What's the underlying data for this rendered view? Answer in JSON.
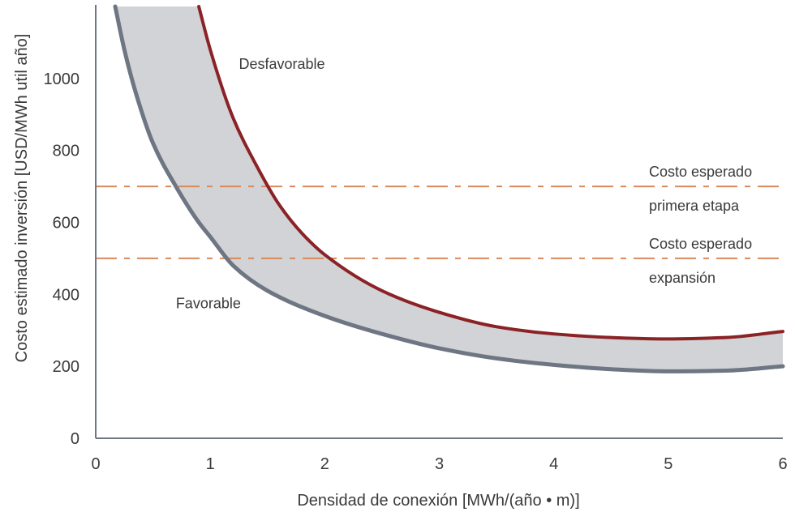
{
  "chart_data": {
    "type": "area",
    "title": "",
    "xlabel": "Densidad de conexión [MWh/(año • m)]",
    "ylabel": "Costo estimado inversión [USD/MWh util año]",
    "xlim": [
      0,
      6
    ],
    "ylim": [
      0,
      1200
    ],
    "xticks": [
      0,
      1,
      2,
      3,
      4,
      5,
      6
    ],
    "yticks": [
      0,
      200,
      400,
      600,
      800,
      1000
    ],
    "grid": false,
    "colors": {
      "band_fill": "#d1d3d6",
      "upper_line": "#8b2226",
      "lower_line": "#6e7583",
      "threshold": "#d9895a",
      "axis": "#6e7583",
      "text": "#3a3a3a"
    },
    "series": [
      {
        "role": "upper-bound",
        "x": [
          0.9,
          1.0,
          1.2,
          1.4,
          1.6,
          1.8,
          2.0,
          2.5,
          3.0,
          3.5,
          4.0,
          4.5,
          5.0,
          5.5,
          6.0
        ],
        "y": [
          1200,
          1080,
          890,
          760,
          650,
          570,
          510,
          410,
          350,
          310,
          290,
          280,
          276,
          280,
          297
        ]
      },
      {
        "role": "lower-bound",
        "x": [
          0.17,
          0.25,
          0.35,
          0.5,
          0.7,
          0.9,
          1.0,
          1.2,
          1.5,
          2.0,
          2.5,
          3.0,
          3.5,
          4.0,
          4.5,
          5.0,
          5.5,
          6.0
        ],
        "y": [
          1200,
          1080,
          960,
          820,
          700,
          600,
          560,
          480,
          410,
          340,
          290,
          250,
          222,
          204,
          192,
          186,
          188,
          200
        ]
      }
    ],
    "thresholds": [
      {
        "y": 700,
        "label_line1": "Costo esperado",
        "label_line2": "primera etapa"
      },
      {
        "y": 500,
        "label_line1": "Costo esperado",
        "label_line2": "expansión"
      }
    ],
    "annotations": [
      {
        "text": "Desfavorable",
        "x": 1.25,
        "y": 1040
      },
      {
        "text": "Favorable",
        "x": 0.7,
        "y": 375
      }
    ]
  }
}
